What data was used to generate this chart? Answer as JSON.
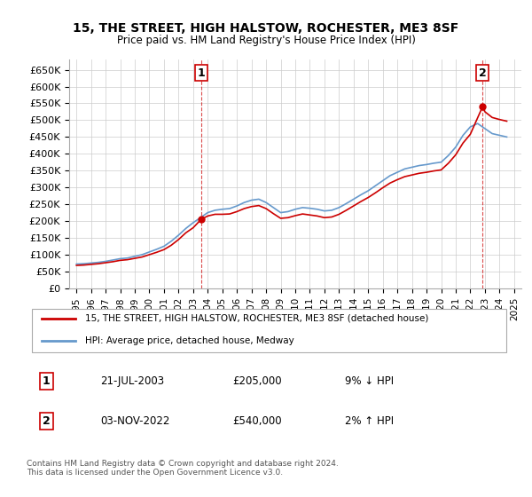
{
  "title": "15, THE STREET, HIGH HALSTOW, ROCHESTER, ME3 8SF",
  "subtitle": "Price paid vs. HM Land Registry's House Price Index (HPI)",
  "footnote": "Contains HM Land Registry data © Crown copyright and database right 2024.\nThis data is licensed under the Open Government Licence v3.0.",
  "legend_line1": "15, THE STREET, HIGH HALSTOW, ROCHESTER, ME3 8SF (detached house)",
  "legend_line2": "HPI: Average price, detached house, Medway",
  "annotation1_label": "1",
  "annotation1_date": "21-JUL-2003",
  "annotation1_price": "£205,000",
  "annotation1_hpi": "9% ↓ HPI",
  "annotation2_label": "2",
  "annotation2_date": "03-NOV-2022",
  "annotation2_price": "£540,000",
  "annotation2_hpi": "2% ↑ HPI",
  "red_color": "#cc0000",
  "blue_color": "#6699cc",
  "grid_color": "#cccccc",
  "background_color": "#ffffff",
  "point1_x": 2003.55,
  "point1_y": 205000,
  "point2_x": 2022.84,
  "point2_y": 540000,
  "ylim": [
    0,
    680000
  ],
  "xlim": [
    1994.5,
    2025.5
  ],
  "yticks": [
    0,
    50000,
    100000,
    150000,
    200000,
    250000,
    300000,
    350000,
    400000,
    450000,
    500000,
    550000,
    600000,
    650000
  ],
  "ytick_labels": [
    "£0",
    "£50K",
    "£100K",
    "£150K",
    "£200K",
    "£250K",
    "£300K",
    "£350K",
    "£400K",
    "£450K",
    "£500K",
    "£550K",
    "£600K",
    "£650K"
  ]
}
